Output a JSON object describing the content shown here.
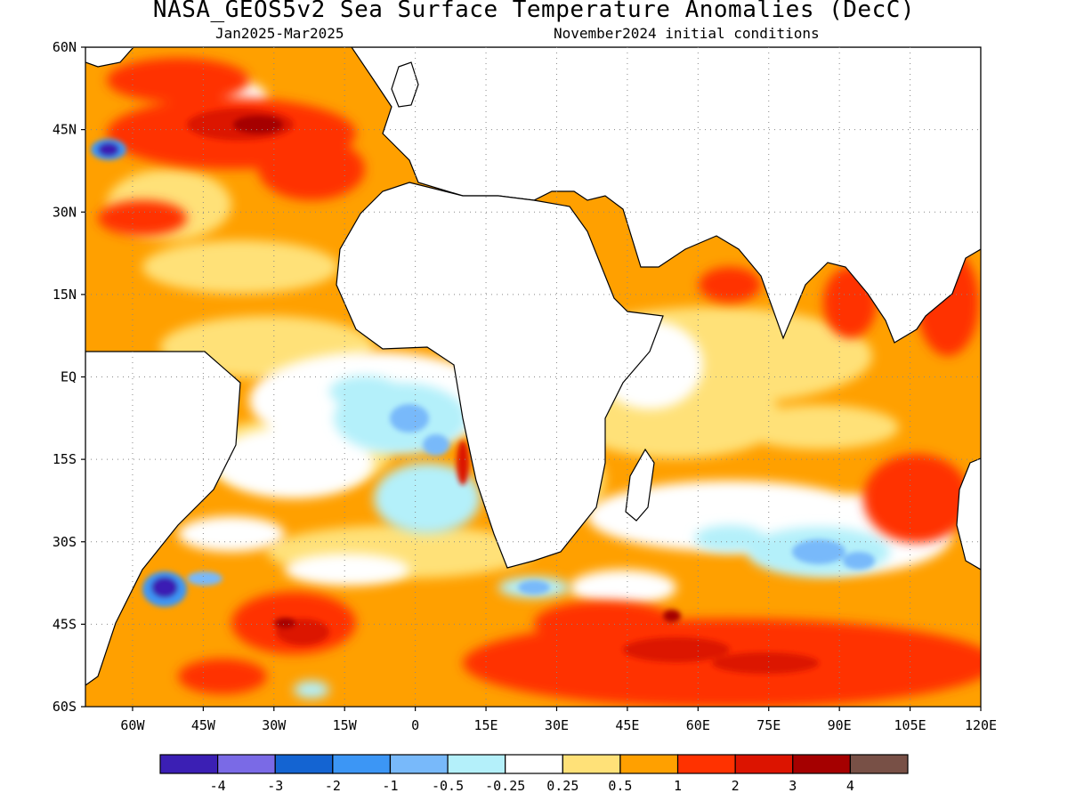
{
  "title": "NASA_GEOS5v2 Sea Surface Temperature Anomalies (DecC)",
  "subtitle_left": "Jan2025-Mar2025",
  "subtitle_right": "November2024 initial conditions",
  "map": {
    "lon_range": [
      -70,
      120
    ],
    "lat_range": [
      -60,
      60
    ],
    "lat_ticks": [
      "60N",
      "45N",
      "30N",
      "15N",
      "EQ",
      "15S",
      "30S",
      "45S",
      "60S"
    ],
    "lon_ticks": [
      "60W",
      "45W",
      "30W",
      "15W",
      "0",
      "15E",
      "30E",
      "45E",
      "60E",
      "75E",
      "90E",
      "105E",
      "120E"
    ],
    "grid": "dotted",
    "land_color": "#ffffff",
    "anomaly_regions": [
      {
        "name": "north-atlantic",
        "lon": [
          -70,
          -5
        ],
        "lat": [
          10,
          60
        ],
        "category": "0.5 to 1"
      },
      {
        "name": "northwest-atlantic-cold-spot",
        "lon": [
          -70,
          -62
        ],
        "lat": [
          39,
          44
        ],
        "category": "-4 to -3"
      },
      {
        "name": "north-atlantic-hot-band",
        "lon": [
          -40,
          -20
        ],
        "lat": [
          45,
          53
        ],
        "category": "3 to 4"
      },
      {
        "name": "tropical-south-atlantic",
        "lon": [
          -20,
          10
        ],
        "lat": [
          -35,
          0
        ],
        "category": "-0.5 to -0.25"
      },
      {
        "name": "angola-coast-warm",
        "lon": [
          7,
          13
        ],
        "lat": [
          -20,
          -5
        ],
        "category": "2 to 3"
      },
      {
        "name": "brazil-malvinas-cold-spot",
        "lon": [
          -58,
          -50
        ],
        "lat": [
          -42,
          -36
        ],
        "category": "-4 to -3"
      },
      {
        "name": "southern-ocean-warm",
        "lon": [
          30,
          120
        ],
        "lat": [
          -60,
          -43
        ],
        "category": "1 to 2"
      },
      {
        "name": "south-indian-cold-patch",
        "lon": [
          65,
          95
        ],
        "lat": [
          -40,
          -28
        ],
        "category": "-1 to -0.5"
      },
      {
        "name": "arabian-sea-warm",
        "lon": [
          55,
          75
        ],
        "lat": [
          5,
          25
        ],
        "category": "0.5 to 1"
      },
      {
        "name": "bay-of-bengal-warm",
        "lon": [
          80,
          95
        ],
        "lat": [
          5,
          22
        ],
        "category": "1 to 2"
      },
      {
        "name": "maritime-continent-warm",
        "lon": [
          100,
          120
        ],
        "lat": [
          -5,
          20
        ],
        "category": "1 to 2"
      },
      {
        "name": "western-australia-warm",
        "lon": [
          95,
          115
        ],
        "lat": [
          -30,
          -15
        ],
        "category": "1 to 2"
      }
    ]
  },
  "colorbar": {
    "colors": [
      "#3b1fb4",
      "#7a6ae6",
      "#1464d2",
      "#3c96f5",
      "#78b9fa",
      "#b4f0fa",
      "#ffffff",
      "#ffe178",
      "#ffa000",
      "#ff3200",
      "#dc1400",
      "#a50000",
      "#785046"
    ],
    "labels": [
      "-4",
      "-3",
      "-2",
      "-1",
      "-0.5",
      "-0.25",
      "0.25",
      "0.5",
      "1",
      "2",
      "3",
      "4"
    ]
  }
}
